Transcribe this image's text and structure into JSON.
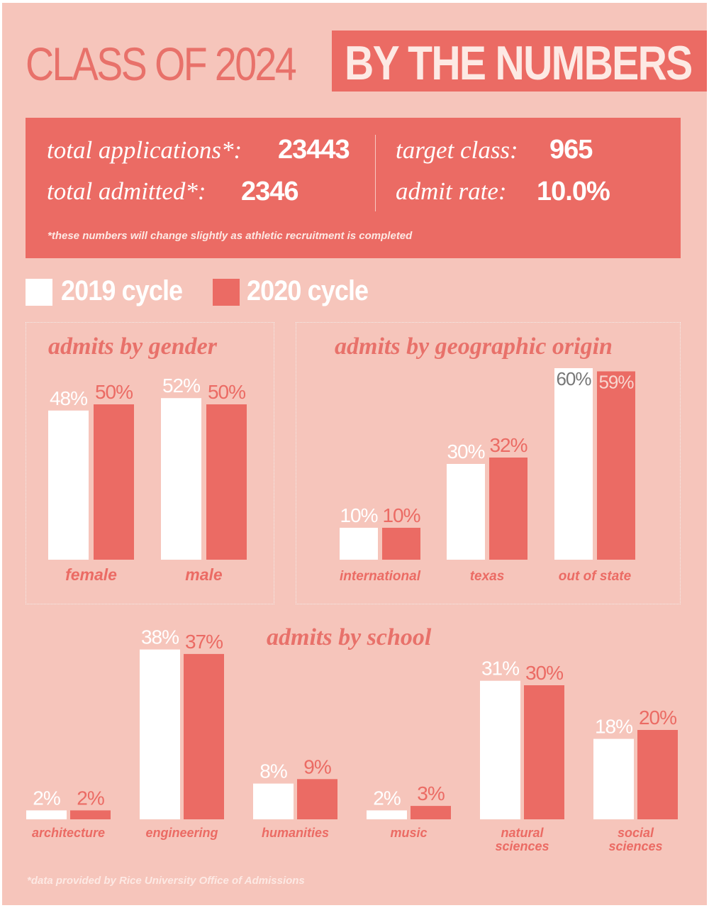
{
  "header": {
    "title_left": "CLASS OF 2024",
    "title_right": "BY THE NUMBERS"
  },
  "stats": {
    "total_applications_label": "total applications*:",
    "total_applications_value": "23443",
    "total_admitted_label": "total admitted*:",
    "total_admitted_value": "2346",
    "target_class_label": "target class:",
    "target_class_value": "965",
    "admit_rate_label": "admit rate:",
    "admit_rate_value": "10.0%",
    "note": "*these numbers will change slightly as athletic recruitment is completed"
  },
  "legend": {
    "cycle_2019": "2019 cycle",
    "cycle_2020": "2020 cycle"
  },
  "colors": {
    "background": "#f6c5bb",
    "accent": "#eb6b64",
    "bar_2019": "#ffffff",
    "bar_2020": "#eb6b64"
  },
  "chart_data": [
    {
      "id": "gender",
      "type": "bar",
      "title": "admits by gender",
      "categories": [
        "female",
        "male"
      ],
      "series": [
        {
          "name": "2019 cycle",
          "values": [
            48,
            52
          ]
        },
        {
          "name": "2020 cycle",
          "values": [
            50,
            50
          ]
        }
      ],
      "value_labels": [
        [
          "48%",
          "52%"
        ],
        [
          "50%",
          "50%"
        ]
      ],
      "unit": "%"
    },
    {
      "id": "geo",
      "type": "bar",
      "title": "admits by geographic origin",
      "categories": [
        "international",
        "texas",
        "out of state"
      ],
      "series": [
        {
          "name": "2019 cycle",
          "values": [
            10,
            30,
            60
          ]
        },
        {
          "name": "2020 cycle",
          "values": [
            10,
            32,
            59
          ]
        }
      ],
      "value_labels": [
        [
          "10%",
          "30%",
          "60%"
        ],
        [
          "10%",
          "32%",
          "59%"
        ]
      ],
      "unit": "%"
    },
    {
      "id": "school",
      "type": "bar",
      "title": "admits by school",
      "categories": [
        "architecture",
        "engineering",
        "humanities",
        "music",
        "natural sciences",
        "social sciences"
      ],
      "series": [
        {
          "name": "2019 cycle",
          "values": [
            2,
            38,
            8,
            2,
            31,
            18
          ]
        },
        {
          "name": "2020 cycle",
          "values": [
            2,
            37,
            9,
            3,
            30,
            20
          ]
        }
      ],
      "value_labels": [
        [
          "2%",
          "38%",
          "8%",
          "2%",
          "31%",
          "18%"
        ],
        [
          "2%",
          "37%",
          "9%",
          "3%",
          "30%",
          "20%"
        ]
      ],
      "unit": "%"
    }
  ],
  "footnote": "*data provided by Rice University Office of Admissions"
}
